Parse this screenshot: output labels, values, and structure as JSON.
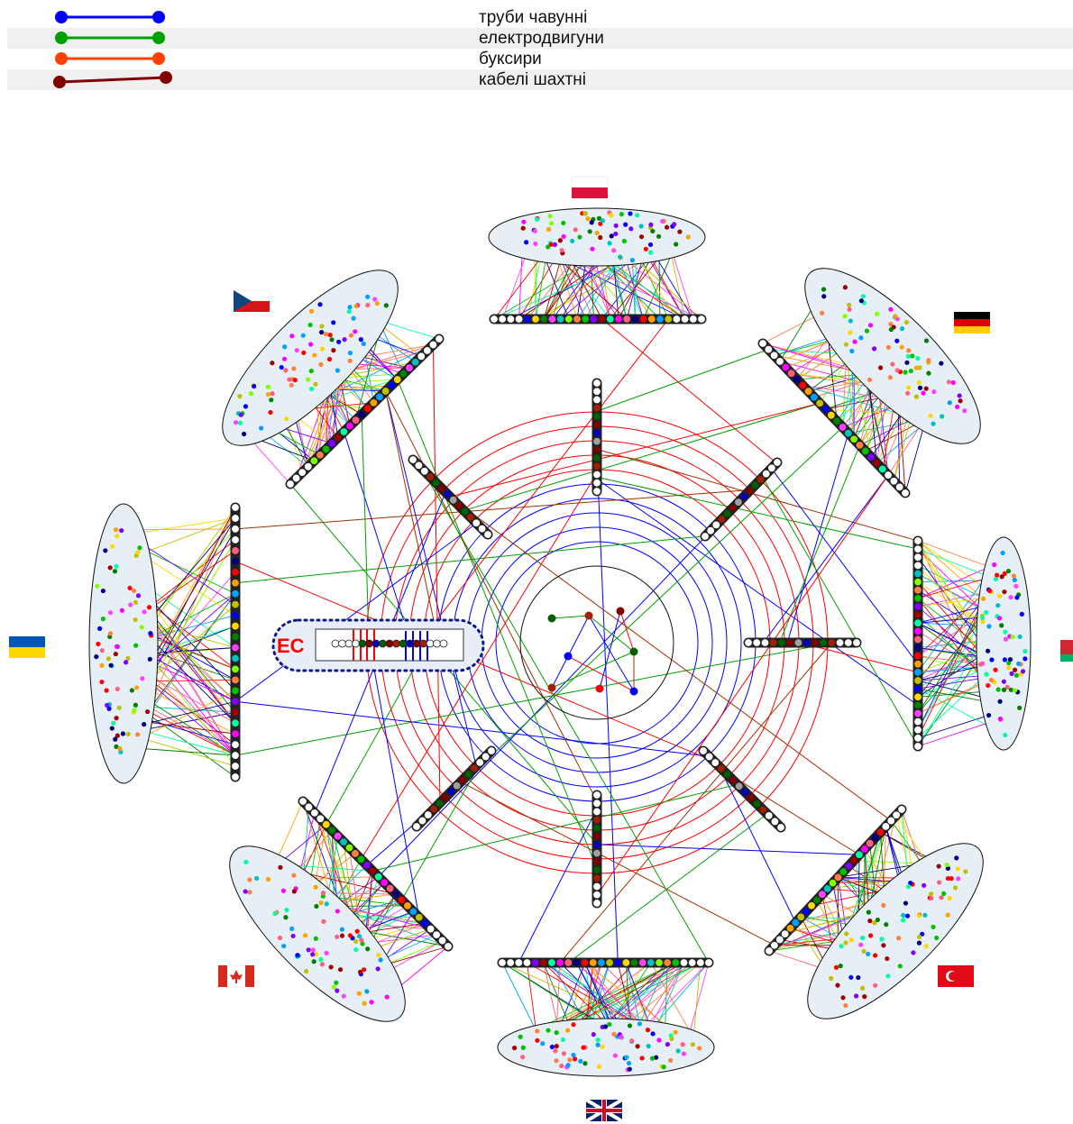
{
  "legend": [
    {
      "label": "труби чавунні",
      "color": "#0000ff"
    },
    {
      "label": "електродвигуни",
      "color": "#00a000"
    },
    {
      "label": "буксири",
      "color": "#ff4000"
    },
    {
      "label": "кабелі шахтні",
      "color": "#800000"
    }
  ],
  "center_label": "ЕС",
  "countries": [
    {
      "name": "poland-flag",
      "flag": "poland"
    },
    {
      "name": "germany-flag",
      "flag": "germany"
    },
    {
      "name": "belarus-flag",
      "flag": "belarus"
    },
    {
      "name": "turkey-flag",
      "flag": "turkey"
    },
    {
      "name": "uk-flag",
      "flag": "uk"
    },
    {
      "name": "canada-flag",
      "flag": "canada"
    },
    {
      "name": "ukraine-flag",
      "flag": "ukraine"
    },
    {
      "name": "czech-flag",
      "flag": "czech"
    }
  ],
  "colors": {
    "ring_red": "#ff0000",
    "ring_blue": "#0000ff",
    "ec_border": "#0a1a8a",
    "ec_text": "#ff0000"
  }
}
